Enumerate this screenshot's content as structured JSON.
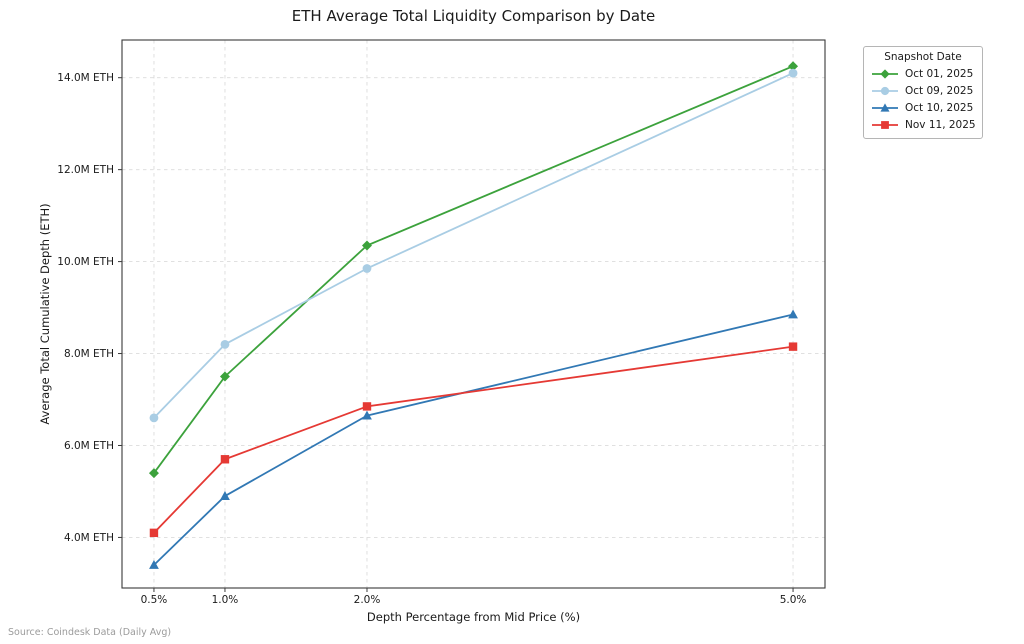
{
  "title": "ETH Average Total Liquidity Comparison by Date",
  "source_note": "Source: Coindesk Data (Daily Avg)",
  "chart_data": {
    "type": "line",
    "title": "ETH Average Total Liquidity Comparison by Date",
    "xlabel": "Depth Percentage from Mid Price (%)",
    "ylabel": "Average Total Cumulative Depth (ETH)",
    "x": [
      0.5,
      1.0,
      2.0,
      5.0
    ],
    "x_tick_labels": [
      "0.5%",
      "1.0%",
      "2.0%",
      "5.0%"
    ],
    "y_ticks": [
      4.0,
      6.0,
      8.0,
      10.0,
      12.0,
      14.0
    ],
    "y_tick_labels": [
      "4.0M ETH",
      "6.0M ETH",
      "8.0M ETH",
      "10.0M ETH",
      "12.0M ETH",
      "14.0M ETH"
    ],
    "y_unit": "M ETH",
    "xlim": [
      0.275,
      5.225
    ],
    "ylim": [
      2.9,
      14.82
    ],
    "grid": true,
    "grid_style": "dashed",
    "legend": {
      "title": "Snapshot Date",
      "position": "outside upper right"
    },
    "series": [
      {
        "name": "Oct 01, 2025",
        "color": "#3ca23c",
        "marker": "diamond",
        "values": [
          5.4,
          7.5,
          10.35,
          14.25
        ]
      },
      {
        "name": "Oct 09, 2025",
        "color": "#a9cde4",
        "marker": "circle",
        "values": [
          6.6,
          8.2,
          9.85,
          14.1
        ]
      },
      {
        "name": "Oct 10, 2025",
        "color": "#3178b4",
        "marker": "triangle",
        "values": [
          3.4,
          4.9,
          6.65,
          8.85
        ]
      },
      {
        "name": "Nov 11, 2025",
        "color": "#e53934",
        "marker": "square",
        "values": [
          4.1,
          5.7,
          6.85,
          8.15
        ]
      }
    ]
  }
}
